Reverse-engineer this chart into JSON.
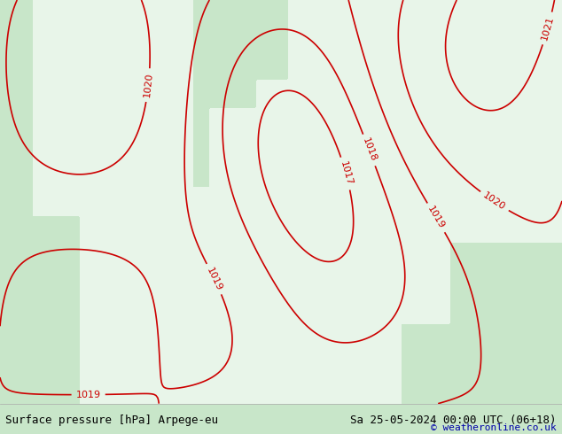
{
  "title_left": "Surface pressure [hPa] Arpege-eu",
  "title_right": "Sa 25-05-2024 00:00 UTC (06+18)",
  "watermark": "© weatheronline.co.uk",
  "bg_color": "#c8e6c9",
  "land_color": "#e8f5e9",
  "border_color": "#888888",
  "contour_color": "#cc0000",
  "label_color": "#cc0000",
  "footer_bg": "#ffffff",
  "footer_text_color": "#000000",
  "watermark_color": "#0000aa",
  "fig_width": 6.34,
  "fig_height": 4.9,
  "dpi": 100
}
